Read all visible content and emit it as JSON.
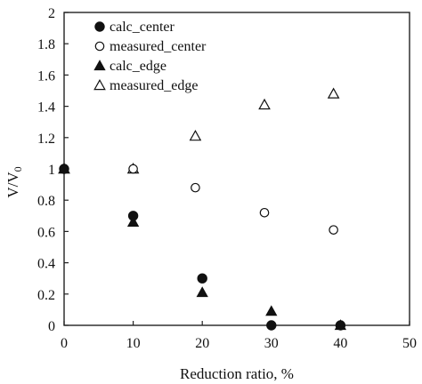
{
  "chart_data": {
    "type": "scatter",
    "xlabel": "Reduction ratio, %",
    "ylabel": {
      "main": "V/V",
      "subscript": "0"
    },
    "xlim": [
      0,
      50
    ],
    "ylim": [
      0,
      2
    ],
    "xticks": [
      0,
      10,
      20,
      30,
      40,
      50
    ],
    "yticks": [
      0,
      0.2,
      0.4,
      0.6,
      0.8,
      1,
      1.2,
      1.4,
      1.6,
      1.8,
      2
    ],
    "xtick_labels": [
      "0",
      "10",
      "20",
      "30",
      "40",
      "50"
    ],
    "ytick_labels": [
      "0",
      "0.2",
      "0.4",
      "0.6",
      "0.8",
      "1",
      "1.2",
      "1.4",
      "1.6",
      "1.8",
      "2"
    ],
    "grid": false,
    "legend_position": "top-left",
    "series": [
      {
        "name": "calc_center",
        "marker": "filled-circle",
        "points": [
          {
            "x": 0,
            "y": 1.0
          },
          {
            "x": 10,
            "y": 0.7
          },
          {
            "x": 20,
            "y": 0.3
          },
          {
            "x": 30,
            "y": 0.0
          },
          {
            "x": 40,
            "y": 0.0
          }
        ]
      },
      {
        "name": "measured_center",
        "marker": "open-circle",
        "points": [
          {
            "x": 0,
            "y": 1.0
          },
          {
            "x": 10,
            "y": 1.0
          },
          {
            "x": 19,
            "y": 0.88
          },
          {
            "x": 29,
            "y": 0.72
          },
          {
            "x": 39,
            "y": 0.61
          }
        ]
      },
      {
        "name": "calc_edge",
        "marker": "filled-triangle",
        "points": [
          {
            "x": 0,
            "y": 1.0
          },
          {
            "x": 10,
            "y": 0.66
          },
          {
            "x": 20,
            "y": 0.21
          },
          {
            "x": 30,
            "y": 0.09
          },
          {
            "x": 40,
            "y": 0.0
          }
        ]
      },
      {
        "name": "measured_edge",
        "marker": "open-triangle",
        "points": [
          {
            "x": 0,
            "y": 1.0
          },
          {
            "x": 10,
            "y": 1.0
          },
          {
            "x": 19,
            "y": 1.21
          },
          {
            "x": 29,
            "y": 1.41
          },
          {
            "x": 39,
            "y": 1.48
          }
        ]
      }
    ]
  }
}
